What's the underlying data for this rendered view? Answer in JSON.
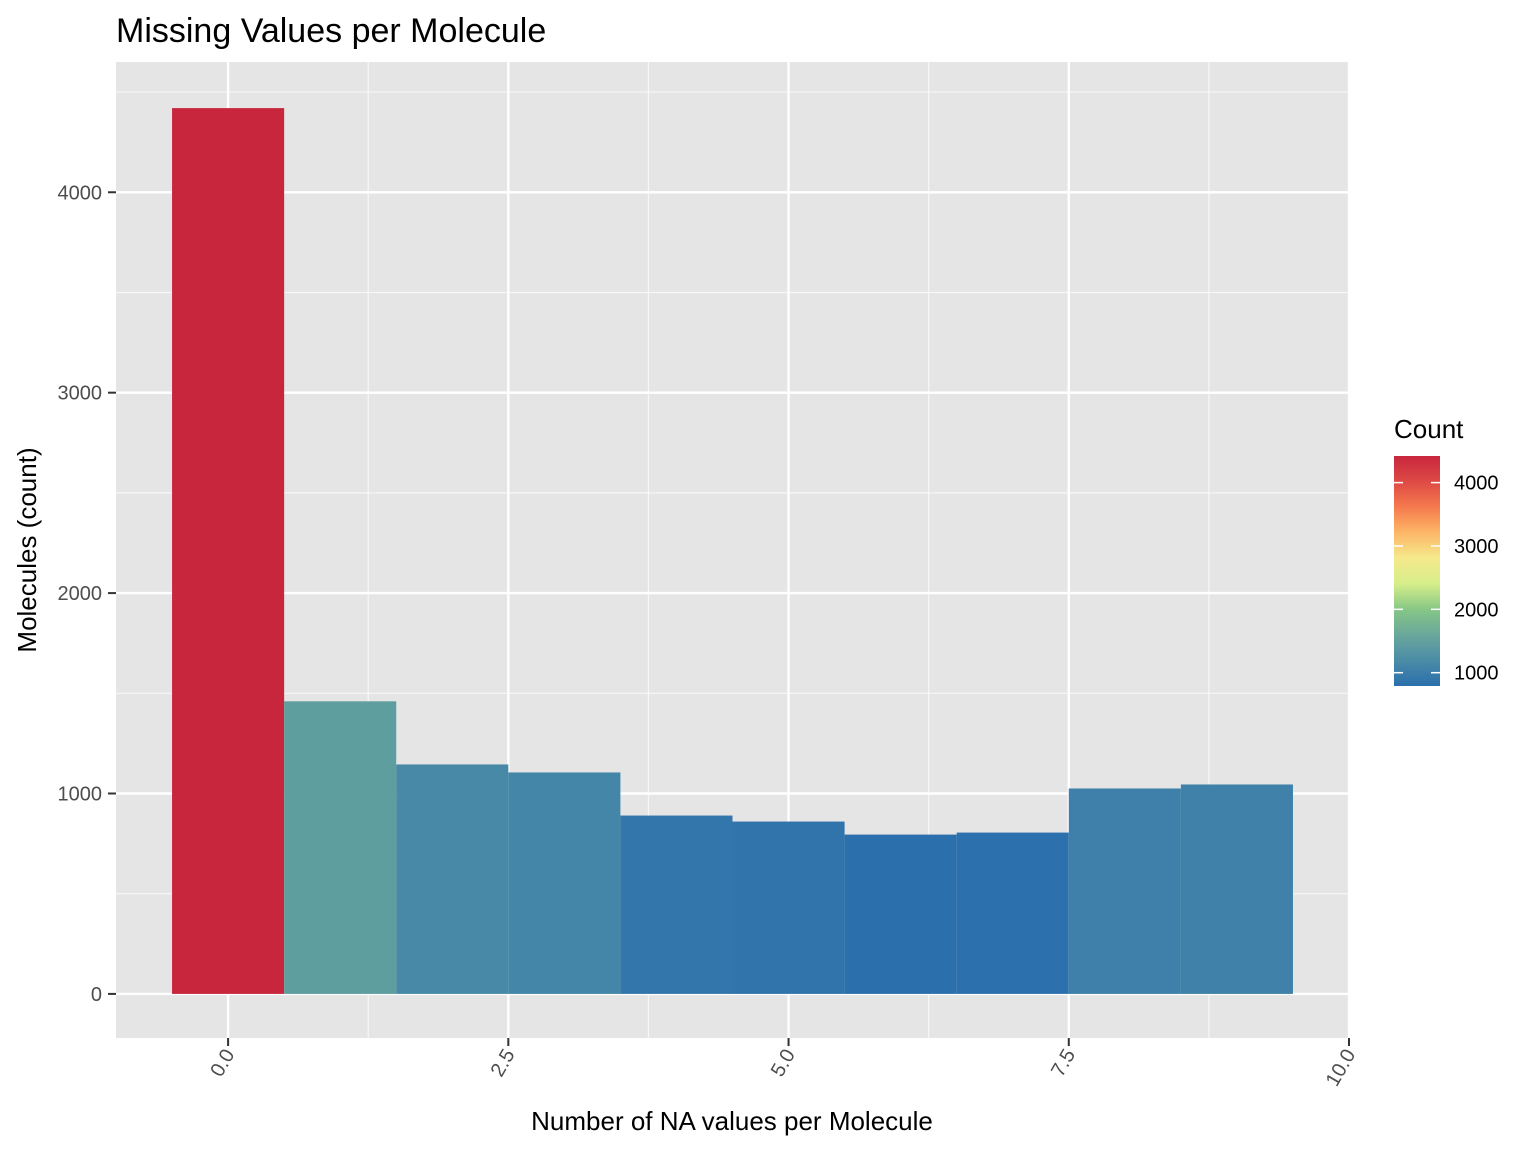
{
  "chart_data": {
    "type": "bar",
    "title": "Missing Values per Molecule",
    "xlabel": "Number of NA values per Molecule",
    "ylabel": "Molecules (count)",
    "x": [
      0,
      1,
      2,
      3,
      4,
      5,
      6,
      7,
      8,
      9
    ],
    "values": [
      4420,
      1460,
      1145,
      1105,
      890,
      860,
      795,
      805,
      1025,
      1045
    ],
    "xlim": [
      -1,
      10
    ],
    "ylim": [
      -220,
      4650
    ],
    "x_ticks": [
      0,
      2.5,
      5,
      7.5,
      10
    ],
    "x_tick_labels": [
      "0.0",
      "2.5",
      "5.0",
      "7.5",
      "10.0"
    ],
    "y_ticks": [
      0,
      1000,
      2000,
      3000,
      4000
    ],
    "y_tick_labels": [
      "0",
      "1000",
      "2000",
      "3000",
      "4000"
    ],
    "grid": true,
    "legend": {
      "title": "Count",
      "placement": "right",
      "range": [
        790,
        4420
      ],
      "ticks": [
        1000,
        2000,
        3000,
        4000
      ],
      "tick_labels": [
        "1000",
        "2000",
        "3000",
        "4000"
      ],
      "colors": [
        "#2b6fad",
        "#4b8ca6",
        "#6aa79c",
        "#86c786",
        "#d6ee8a",
        "#f5e98c",
        "#fdb768",
        "#f57a4d",
        "#de4a45",
        "#c8263d"
      ]
    },
    "panel_background": "#e5e5e5",
    "grid_color": "#ffffff"
  }
}
